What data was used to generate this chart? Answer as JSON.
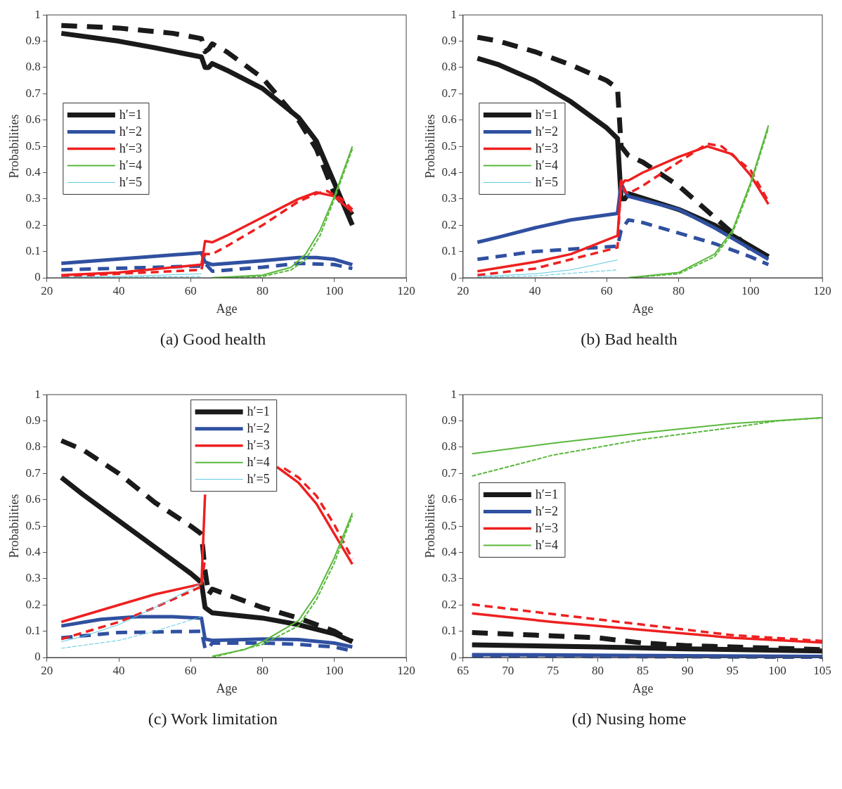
{
  "chart_data": [
    {
      "type": "line",
      "title": "(a) Good health",
      "xlabel": "Age",
      "ylabel": "Probabilities",
      "xlim": [
        20,
        120
      ],
      "xticks": [
        20,
        40,
        60,
        80,
        100,
        120
      ],
      "ylim": [
        0,
        1
      ],
      "yticks": [
        0,
        0.1,
        0.2,
        0.3,
        0.4,
        0.5,
        0.6,
        0.7,
        0.8,
        0.9,
        1
      ],
      "grid": false,
      "legend": "left",
      "series": [
        {
          "name": "h′=1",
          "color": "#1a1a1a",
          "line_style": "solid",
          "x": [
            24,
            40,
            50,
            63,
            64,
            65,
            66,
            70,
            80,
            90,
            95,
            100,
            105
          ],
          "values": [
            0.93,
            0.9,
            0.875,
            0.84,
            0.8,
            0.8,
            0.815,
            0.79,
            0.72,
            0.61,
            0.52,
            0.36,
            0.2
          ]
        },
        {
          "color": "#1a1a1a",
          "line_style": "dashed",
          "x": [
            24,
            40,
            55,
            63,
            64,
            65,
            66,
            70,
            80,
            90,
            95,
            100,
            105
          ],
          "values": [
            0.96,
            0.95,
            0.93,
            0.91,
            0.86,
            0.87,
            0.89,
            0.86,
            0.76,
            0.6,
            0.49,
            0.32,
            0.24
          ]
        },
        {
          "name": "h′=2",
          "color": "#3050a0",
          "line_style": "solid",
          "x": [
            24,
            63,
            64,
            66,
            80,
            90,
            95,
            100,
            105
          ],
          "values": [
            0.055,
            0.095,
            0.06,
            0.05,
            0.065,
            0.077,
            0.077,
            0.07,
            0.05
          ]
        },
        {
          "color": "#3050a0",
          "line_style": "dashed",
          "x": [
            24,
            63,
            64,
            66,
            80,
            90,
            100,
            105
          ],
          "values": [
            0.03,
            0.045,
            0.055,
            0.025,
            0.04,
            0.055,
            0.05,
            0.035
          ]
        },
        {
          "name": "h′=3",
          "color": "#ee2020",
          "line_style": "solid",
          "x": [
            24,
            40,
            63,
            64,
            66,
            70,
            80,
            90,
            95,
            100,
            105
          ],
          "values": [
            0.01,
            0.02,
            0.05,
            0.14,
            0.135,
            0.16,
            0.23,
            0.3,
            0.325,
            0.31,
            0.25
          ]
        },
        {
          "color": "#ee2020",
          "line_style": "dashed",
          "x": [
            24,
            63,
            64,
            66,
            70,
            80,
            90,
            95,
            98,
            102,
            105
          ],
          "values": [
            0.005,
            0.03,
            0.09,
            0.09,
            0.12,
            0.2,
            0.29,
            0.32,
            0.33,
            0.3,
            0.26
          ]
        },
        {
          "name": "h′=4",
          "color": "#5ab83c",
          "line_style": "solid",
          "x": [
            66,
            80,
            88,
            92,
            96,
            100,
            105
          ],
          "values": [
            0,
            0.01,
            0.04,
            0.09,
            0.18,
            0.31,
            0.5
          ]
        },
        {
          "color": "#5ab83c",
          "line_style": "dashed",
          "x": [
            66,
            80,
            88,
            92,
            96,
            100,
            105
          ],
          "values": [
            0,
            0.005,
            0.03,
            0.07,
            0.16,
            0.3,
            0.49
          ]
        },
        {
          "name": "h′=5",
          "color": "#5ac8e0",
          "line_style": "solid",
          "x": [
            24,
            40,
            63
          ],
          "values": [
            0.002,
            0.005,
            0.015
          ]
        },
        {
          "color": "#5ac8e0",
          "line_style": "dashed",
          "x": [
            24,
            63
          ],
          "values": [
            0.001,
            0.005
          ]
        }
      ]
    },
    {
      "type": "line",
      "title": "(b) Bad health",
      "xlabel": "Age",
      "ylabel": "Probabilities",
      "xlim": [
        20,
        120
      ],
      "xticks": [
        20,
        40,
        60,
        80,
        100,
        120
      ],
      "ylim": [
        0,
        1
      ],
      "yticks": [
        0,
        0.1,
        0.2,
        0.3,
        0.4,
        0.5,
        0.6,
        0.7,
        0.8,
        0.9,
        1
      ],
      "grid": false,
      "legend": "left",
      "series": [
        {
          "name": "h′=1",
          "color": "#1a1a1a",
          "line_style": "solid",
          "x": [
            24,
            30,
            40,
            50,
            60,
            63,
            64,
            65,
            66,
            80,
            90,
            100,
            105
          ],
          "values": [
            0.835,
            0.81,
            0.75,
            0.67,
            0.57,
            0.53,
            0.3,
            0.3,
            0.32,
            0.26,
            0.2,
            0.12,
            0.08
          ]
        },
        {
          "color": "#1a1a1a",
          "line_style": "dashed",
          "x": [
            24,
            30,
            40,
            50,
            60,
            63,
            64,
            66,
            70,
            80,
            90,
            100,
            105
          ],
          "values": [
            0.915,
            0.9,
            0.86,
            0.81,
            0.75,
            0.72,
            0.5,
            0.465,
            0.44,
            0.35,
            0.23,
            0.11,
            0.08
          ]
        },
        {
          "name": "h′=2",
          "color": "#3050a0",
          "line_style": "solid",
          "x": [
            24,
            30,
            40,
            50,
            63,
            64,
            65,
            66,
            80,
            90,
            100,
            105
          ],
          "values": [
            0.135,
            0.155,
            0.19,
            0.22,
            0.245,
            0.36,
            0.33,
            0.31,
            0.26,
            0.19,
            0.11,
            0.07
          ]
        },
        {
          "color": "#3050a0",
          "line_style": "dashed",
          "x": [
            24,
            40,
            63,
            64,
            66,
            70,
            80,
            90,
            100,
            105
          ],
          "values": [
            0.07,
            0.1,
            0.12,
            0.18,
            0.22,
            0.21,
            0.17,
            0.13,
            0.08,
            0.05
          ]
        },
        {
          "name": "h′=3",
          "color": "#ee2020",
          "line_style": "solid",
          "x": [
            24,
            40,
            50,
            63,
            64,
            65,
            66,
            70,
            80,
            88,
            95,
            100,
            105
          ],
          "values": [
            0.025,
            0.06,
            0.09,
            0.16,
            0.35,
            0.37,
            0.37,
            0.4,
            0.46,
            0.5,
            0.47,
            0.39,
            0.28
          ]
        },
        {
          "color": "#ee2020",
          "line_style": "dashed",
          "x": [
            24,
            40,
            63,
            64,
            65,
            66,
            70,
            80,
            88,
            92,
            100,
            105
          ],
          "values": [
            0.01,
            0.035,
            0.115,
            0.37,
            0.33,
            0.32,
            0.35,
            0.44,
            0.51,
            0.5,
            0.41,
            0.29
          ]
        },
        {
          "name": "h′=4",
          "color": "#5ab83c",
          "line_style": "solid",
          "x": [
            66,
            80,
            90,
            95,
            100,
            105
          ],
          "values": [
            0,
            0.02,
            0.09,
            0.18,
            0.36,
            0.58
          ]
        },
        {
          "color": "#5ab83c",
          "line_style": "dashed",
          "x": [
            66,
            80,
            90,
            95,
            100,
            105
          ],
          "values": [
            0,
            0.015,
            0.08,
            0.17,
            0.35,
            0.57
          ]
        },
        {
          "name": "h′=5",
          "color": "#5ac8e0",
          "line_style": "solid",
          "x": [
            24,
            40,
            50,
            63
          ],
          "values": [
            0.005,
            0.015,
            0.03,
            0.068
          ]
        },
        {
          "color": "#5ac8e0",
          "line_style": "dashed",
          "x": [
            24,
            40,
            63
          ],
          "values": [
            0.002,
            0.007,
            0.03
          ]
        }
      ]
    },
    {
      "type": "line",
      "title": "(c) Work limitation",
      "xlabel": "Age",
      "ylabel": "Probabilities",
      "xlim": [
        20,
        120
      ],
      "xticks": [
        20,
        40,
        60,
        80,
        100,
        120
      ],
      "ylim": [
        0,
        1
      ],
      "yticks": [
        0,
        0.1,
        0.2,
        0.3,
        0.4,
        0.5,
        0.6,
        0.7,
        0.8,
        0.9,
        1
      ],
      "grid": false,
      "legend": "top",
      "series": [
        {
          "name": "h′=1",
          "color": "#1a1a1a",
          "line_style": "solid",
          "x": [
            24,
            30,
            40,
            50,
            60,
            63,
            64,
            65,
            66,
            80,
            90,
            100,
            105
          ],
          "values": [
            0.685,
            0.62,
            0.52,
            0.42,
            0.32,
            0.285,
            0.19,
            0.18,
            0.17,
            0.15,
            0.125,
            0.09,
            0.06
          ]
        },
        {
          "color": "#1a1a1a",
          "line_style": "dashed",
          "x": [
            24,
            30,
            40,
            50,
            60,
            63,
            64,
            65,
            66,
            70,
            80,
            90,
            100,
            105
          ],
          "values": [
            0.825,
            0.79,
            0.7,
            0.59,
            0.5,
            0.47,
            0.33,
            0.24,
            0.26,
            0.24,
            0.19,
            0.15,
            0.1,
            0.06
          ]
        },
        {
          "name": "h′=2",
          "color": "#3050a0",
          "line_style": "solid",
          "x": [
            24,
            35,
            45,
            55,
            63,
            64,
            66,
            80,
            90,
            100,
            105
          ],
          "values": [
            0.12,
            0.145,
            0.155,
            0.155,
            0.15,
            0.07,
            0.065,
            0.07,
            0.068,
            0.055,
            0.04
          ]
        },
        {
          "color": "#3050a0",
          "line_style": "dashed",
          "x": [
            24,
            40,
            63,
            64,
            65,
            66,
            80,
            90,
            100,
            105
          ],
          "values": [
            0.075,
            0.095,
            0.1,
            0.035,
            0.035,
            0.055,
            0.055,
            0.05,
            0.04,
            0.025
          ]
        },
        {
          "name": "h′=3",
          "color": "#ee2020",
          "line_style": "solid",
          "x": [
            24,
            40,
            50,
            63,
            64,
            70,
            84,
            90,
            95,
            100,
            105
          ],
          "values": [
            0.135,
            0.2,
            0.24,
            0.28,
            0.62,
            null,
            0.725,
            0.665,
            0.585,
            0.47,
            0.355
          ]
        },
        {
          "color": "#ee2020",
          "line_style": "dashed",
          "x": [
            24,
            40,
            50,
            63,
            64,
            70,
            86,
            90,
            95,
            100,
            105
          ],
          "values": [
            0.07,
            0.135,
            0.19,
            0.27,
            0.38,
            null,
            0.72,
            0.685,
            0.615,
            0.505,
            0.375
          ]
        },
        {
          "name": "h′=4",
          "color": "#5ab83c",
          "line_style": "solid",
          "x": [
            66,
            75,
            80,
            90,
            95,
            100,
            105
          ],
          "values": [
            0.005,
            0.03,
            0.06,
            0.14,
            0.24,
            0.38,
            0.55
          ]
        },
        {
          "color": "#5ab83c",
          "line_style": "dashed",
          "x": [
            66,
            80,
            90,
            95,
            100,
            105
          ],
          "values": [
            0,
            0.05,
            0.12,
            0.22,
            0.36,
            0.54
          ]
        },
        {
          "name": "h′=5",
          "color": "#5ac8e0",
          "line_style": "solid",
          "x": [
            24,
            30,
            40,
            50,
            60,
            63
          ],
          "values": [
            0.06,
            0.08,
            0.125,
            0.19,
            0.26,
            0.285
          ]
        },
        {
          "color": "#5ac8e0",
          "line_style": "dashed",
          "x": [
            24,
            40,
            50,
            63
          ],
          "values": [
            0.035,
            0.065,
            0.1,
            0.155
          ]
        }
      ]
    },
    {
      "type": "line",
      "title": "(d) Nusing home",
      "xlabel": "Age",
      "ylabel": "Probabilities",
      "xlim": [
        65,
        105
      ],
      "xticks": [
        65,
        70,
        75,
        80,
        85,
        90,
        95,
        100,
        105
      ],
      "ylim": [
        0,
        1
      ],
      "yticks": [
        0,
        0.1,
        0.2,
        0.3,
        0.4,
        0.5,
        0.6,
        0.7,
        0.8,
        0.9,
        1
      ],
      "grid": false,
      "legend": "left",
      "series": [
        {
          "name": "h′=1",
          "color": "#1a1a1a",
          "line_style": "solid",
          "x": [
            66,
            80,
            90,
            105
          ],
          "values": [
            0.048,
            0.04,
            0.033,
            0.025
          ]
        },
        {
          "color": "#1a1a1a",
          "line_style": "dashed",
          "x": [
            66,
            80,
            85,
            90,
            100,
            105
          ],
          "values": [
            0.095,
            0.075,
            0.055,
            0.045,
            0.035,
            0.03
          ]
        },
        {
          "name": "h′=2",
          "color": "#3050a0",
          "line_style": "solid",
          "x": [
            66,
            105
          ],
          "values": [
            0.011,
            0.004
          ]
        },
        {
          "color": "#3050a0",
          "line_style": "dashed",
          "x": [
            66,
            105
          ],
          "values": [
            0.005,
            0.001
          ]
        },
        {
          "name": "h′=3",
          "color": "#ee2020",
          "line_style": "solid",
          "x": [
            66,
            75,
            85,
            95,
            105
          ],
          "values": [
            0.168,
            0.135,
            0.105,
            0.075,
            0.057
          ]
        },
        {
          "color": "#ee2020",
          "line_style": "dashed",
          "x": [
            66,
            75,
            85,
            95,
            105
          ],
          "values": [
            0.202,
            0.165,
            0.125,
            0.085,
            0.063
          ]
        },
        {
          "name": "h′=4",
          "color": "#5ab83c",
          "line_style": "solid",
          "x": [
            66,
            75,
            85,
            95,
            105
          ],
          "values": [
            0.775,
            0.815,
            0.855,
            0.89,
            0.912
          ]
        },
        {
          "color": "#5ab83c",
          "line_style": "dashed",
          "x": [
            66,
            75,
            85,
            95,
            100,
            105
          ],
          "values": [
            0.69,
            0.77,
            0.83,
            0.875,
            0.9,
            0.912
          ]
        }
      ]
    }
  ]
}
